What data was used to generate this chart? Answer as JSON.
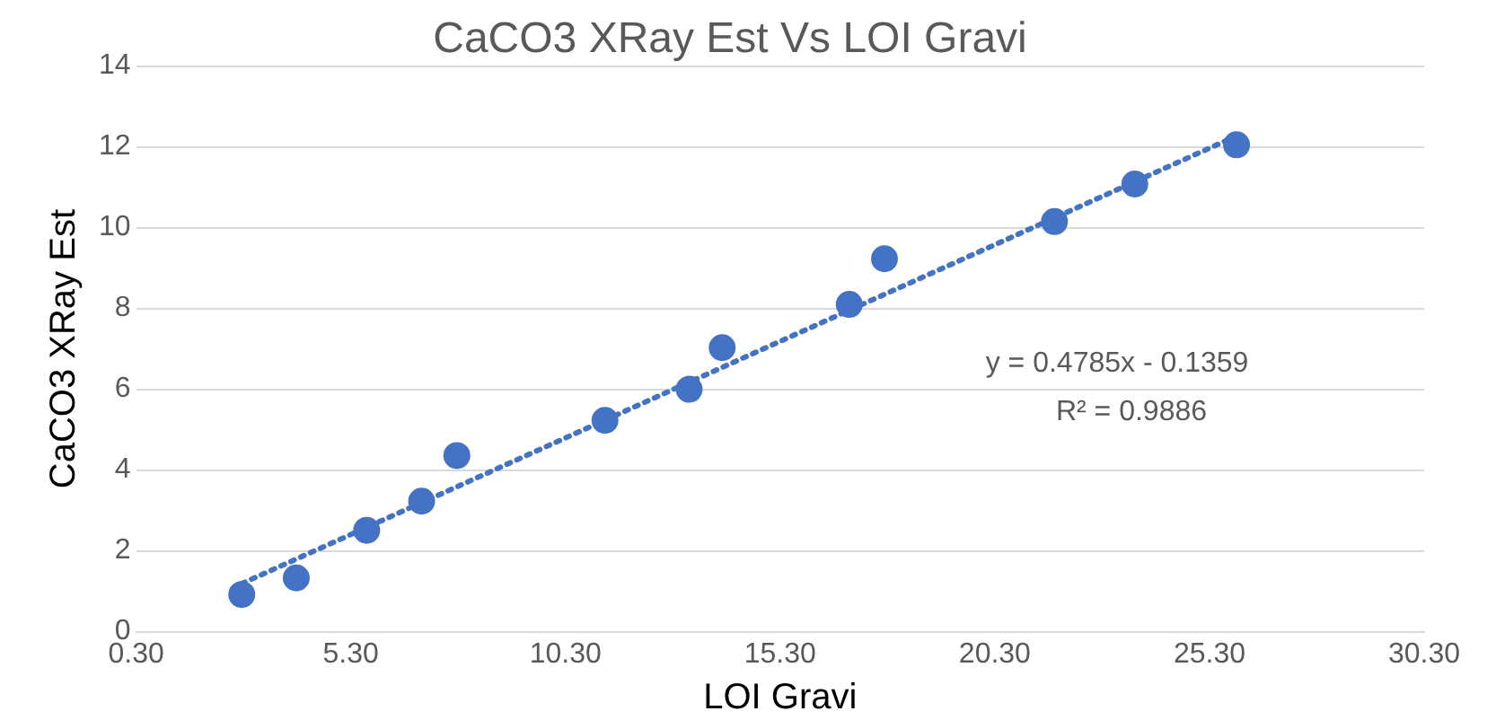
{
  "chart_data": {
    "type": "scatter",
    "title": "CaCO3 XRay Est Vs LOI Gravi",
    "xlabel": "LOI Gravi",
    "ylabel": "CaCO3 XRay Est",
    "x": [
      2.76,
      4.03,
      5.67,
      6.95,
      7.77,
      11.22,
      13.18,
      13.95,
      16.91,
      17.73,
      21.69,
      23.56,
      25.93
    ],
    "series": [
      {
        "color": "#4472c4",
        "values": [
          0.92,
          1.33,
          2.51,
          3.23,
          4.36,
          5.23,
          6.0,
          7.03,
          8.1,
          9.23,
          10.15,
          11.08,
          12.05
        ]
      },
      {
        "type": "line",
        "color": "#4472c4",
        "line_style": "dotted",
        "marker": "none",
        "x": [
          2.76,
          25.93
        ],
        "values": [
          1.19,
          12.27
        ]
      }
    ],
    "xlim": [
      0.3,
      30.3
    ],
    "xticks": [
      {
        "value": 0.3,
        "label": "0.30"
      },
      {
        "value": 5.3,
        "label": "5.30"
      },
      {
        "value": 10.3,
        "label": "10.30"
      },
      {
        "value": 15.3,
        "label": "15.30"
      },
      {
        "value": 20.3,
        "label": "20.30"
      },
      {
        "value": 25.3,
        "label": "25.30"
      },
      {
        "value": 30.3,
        "label": "30.30"
      }
    ],
    "ylim": [
      0,
      14
    ],
    "yticks": [
      0,
      2,
      4,
      6,
      8,
      10,
      12,
      14
    ],
    "grid": "y",
    "legend": false,
    "marker": "circle",
    "annotations": [
      "y = 0.4785x - 0.1359",
      "R² = 0.9886"
    ]
  }
}
